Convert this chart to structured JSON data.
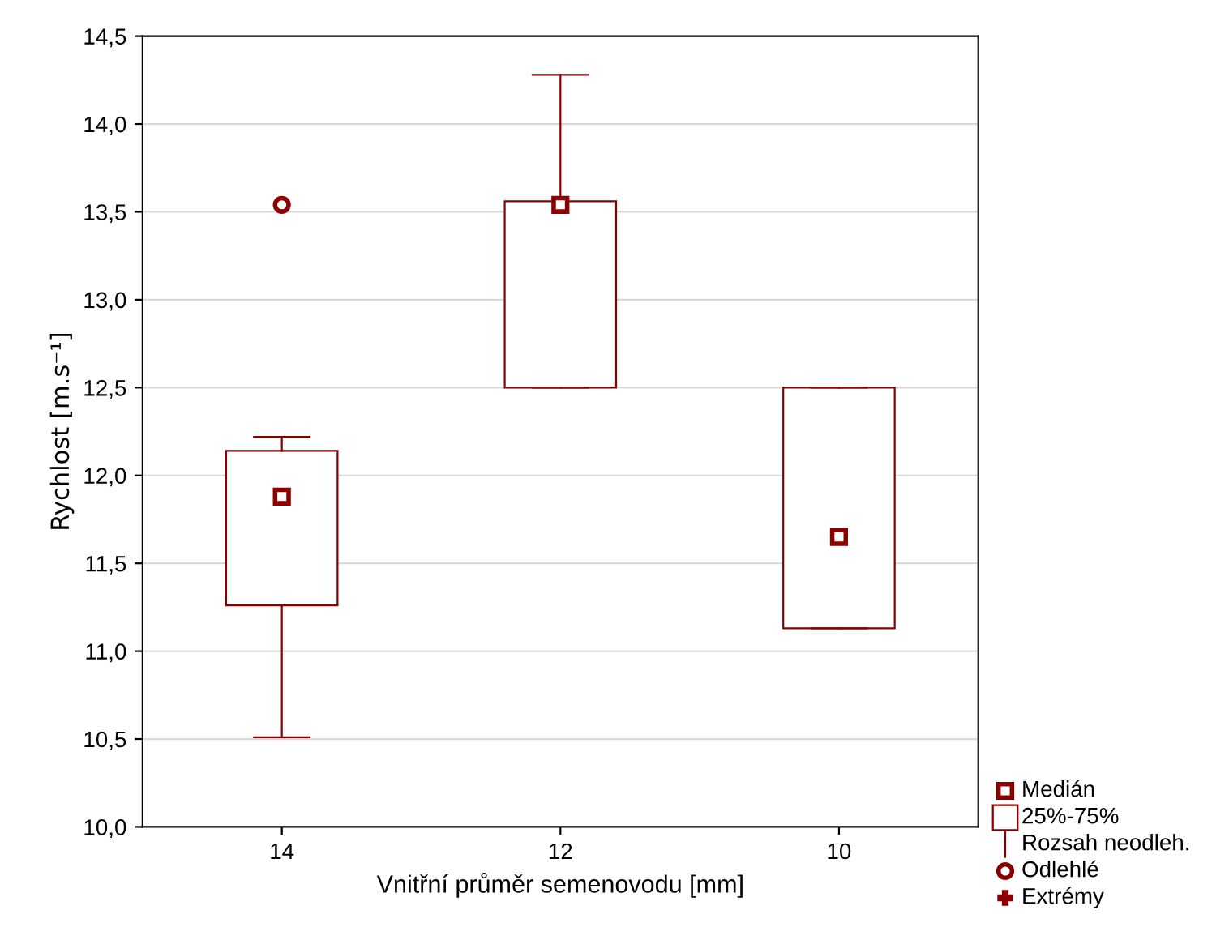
{
  "chart_data": {
    "type": "box",
    "xlabel": "Vnitřní průměr semenovodu [mm]",
    "ylabel": "Rychlost [m.s⁻¹]",
    "categories": [
      "14",
      "12",
      "10"
    ],
    "series": [
      {
        "color": "#8b0000",
        "boxes": [
          {
            "low": 10.51,
            "q1": 11.26,
            "median": 11.88,
            "q3": 12.14,
            "high": 12.22,
            "outliers": [
              13.54
            ]
          },
          {
            "low": 12.5,
            "q1": 12.5,
            "median": 13.54,
            "q3": 13.56,
            "high": 14.28
          },
          {
            "low": 11.13,
            "q1": 11.13,
            "median": 11.65,
            "q3": 12.5,
            "high": 12.5
          }
        ]
      }
    ],
    "ylim": [
      10,
      14.5
    ],
    "yticks": [
      {
        "value": 10,
        "label": "10,0"
      },
      {
        "value": 10.5,
        "label": "10,5"
      },
      {
        "value": 11,
        "label": "11,0"
      },
      {
        "value": 11.5,
        "label": "11,5"
      },
      {
        "value": 12,
        "label": "12,0"
      },
      {
        "value": 12.5,
        "label": "12,5"
      },
      {
        "value": 13,
        "label": "13,0"
      },
      {
        "value": 13.5,
        "label": "13,5"
      },
      {
        "value": 14,
        "label": "14,0"
      },
      {
        "value": 14.5,
        "label": "14,5"
      }
    ],
    "grid": "y",
    "annotations": [
      "Medián",
      "25%-75%",
      "Rozsah neodleh.",
      "Odlehlé",
      "Extrémy"
    ]
  }
}
